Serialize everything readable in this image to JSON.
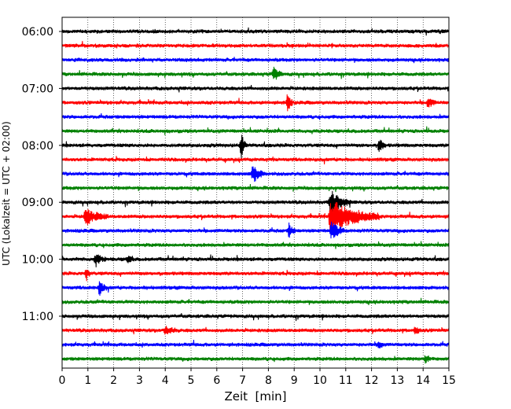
{
  "chart_data": {
    "type": "line",
    "subtype": "helicorder",
    "title": "",
    "xlabel": "Zeit  [min]",
    "ylabel": "UTC (Lokalzeit = UTC + 02:00)",
    "xlim": [
      0,
      15
    ],
    "x_ticks": [
      "0",
      "1",
      "2",
      "3",
      "4",
      "5",
      "6",
      "7",
      "8",
      "9",
      "10",
      "11",
      "12",
      "13",
      "14",
      "15"
    ],
    "x_grid": true,
    "line_colors": [
      "#000000",
      "#ff0000",
      "#0000ff",
      "#008000"
    ],
    "row_start": "06:00",
    "row_interval_min": 15,
    "row_count": 24,
    "y_tick_labels": [
      {
        "label": "06:00",
        "row": 0
      },
      {
        "label": "07:00",
        "row": 4
      },
      {
        "label": "08:00",
        "row": 8
      },
      {
        "label": "09:00",
        "row": 12
      },
      {
        "label": "10:00",
        "row": 16
      },
      {
        "label": "11:00",
        "row": 20
      }
    ],
    "events": [
      {
        "row": 3,
        "minute": 8.2,
        "amplitude": 0.5,
        "duration_min": 0.35
      },
      {
        "row": 5,
        "minute": 8.75,
        "amplitude": 0.7,
        "duration_min": 0.2
      },
      {
        "row": 5,
        "minute": 14.2,
        "amplitude": 0.4,
        "duration_min": 0.3
      },
      {
        "row": 8,
        "minute": 6.95,
        "amplitude": 0.9,
        "duration_min": 0.2
      },
      {
        "row": 8,
        "minute": 12.3,
        "amplitude": 0.5,
        "duration_min": 0.25
      },
      {
        "row": 10,
        "minute": 7.4,
        "amplitude": 0.6,
        "duration_min": 0.5
      },
      {
        "row": 12,
        "minute": 10.4,
        "amplitude": 0.9,
        "duration_min": 0.8
      },
      {
        "row": 13,
        "minute": 0.9,
        "amplitude": 0.6,
        "duration_min": 0.9
      },
      {
        "row": 13,
        "minute": 10.4,
        "amplitude": 1.2,
        "duration_min": 1.9
      },
      {
        "row": 14,
        "minute": 8.8,
        "amplitude": 0.5,
        "duration_min": 0.25
      },
      {
        "row": 14,
        "minute": 10.45,
        "amplitude": 0.7,
        "duration_min": 0.5
      },
      {
        "row": 16,
        "minute": 1.3,
        "amplitude": 0.45,
        "duration_min": 0.4
      },
      {
        "row": 16,
        "minute": 2.55,
        "amplitude": 0.3,
        "duration_min": 0.25
      },
      {
        "row": 17,
        "minute": 0.95,
        "amplitude": 0.45,
        "duration_min": 0.15
      },
      {
        "row": 18,
        "minute": 1.45,
        "amplitude": 0.5,
        "duration_min": 0.3
      },
      {
        "row": 21,
        "minute": 4.0,
        "amplitude": 0.25,
        "duration_min": 0.6
      },
      {
        "row": 21,
        "minute": 13.7,
        "amplitude": 0.3,
        "duration_min": 0.2
      },
      {
        "row": 22,
        "minute": 12.3,
        "amplitude": 0.3,
        "duration_min": 0.2
      },
      {
        "row": 23,
        "minute": 14.1,
        "amplitude": 0.3,
        "duration_min": 0.2
      }
    ]
  }
}
